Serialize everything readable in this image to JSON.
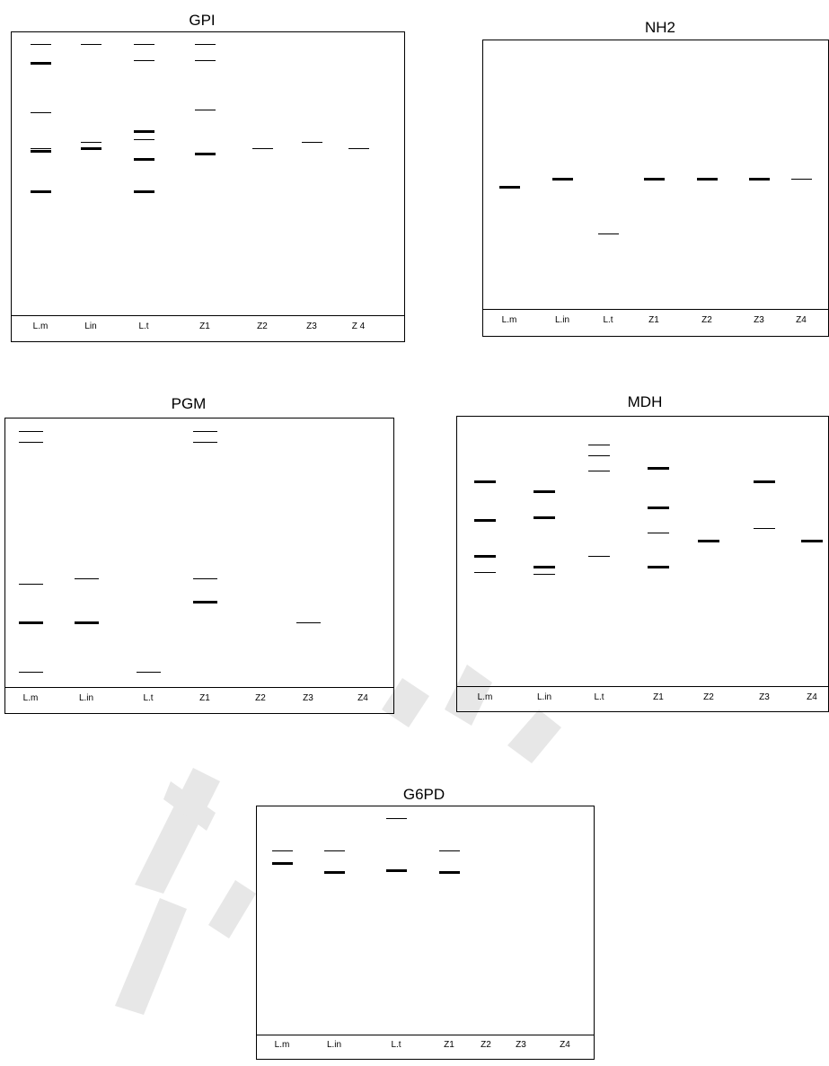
{
  "gels": [
    {
      "id": "gpi",
      "title": "GPI",
      "lanes": [
        "L.m",
        "Lin",
        "L.t",
        "Z1",
        "Z2",
        "Z3",
        "Z 4"
      ],
      "bands": [
        {
          "lane": 0,
          "weight": "thin",
          "level": 0.03
        },
        {
          "lane": 0,
          "weight": "bold",
          "level": 0.1
        },
        {
          "lane": 0,
          "weight": "thin",
          "level": 0.28
        },
        {
          "lane": 0,
          "weight": "thin",
          "level": 0.41
        },
        {
          "lane": 0,
          "weight": "bold",
          "level": 0.42
        },
        {
          "lane": 0,
          "weight": "bold",
          "level": 0.57
        },
        {
          "lane": 1,
          "weight": "thin",
          "level": 0.03
        },
        {
          "lane": 1,
          "weight": "thin",
          "level": 0.39
        },
        {
          "lane": 1,
          "weight": "bold",
          "level": 0.41
        },
        {
          "lane": 2,
          "weight": "thin",
          "level": 0.03
        },
        {
          "lane": 2,
          "weight": "thin",
          "level": 0.09
        },
        {
          "lane": 2,
          "weight": "bold",
          "level": 0.35
        },
        {
          "lane": 2,
          "weight": "thin",
          "level": 0.38
        },
        {
          "lane": 2,
          "weight": "bold",
          "level": 0.45
        },
        {
          "lane": 2,
          "weight": "bold",
          "level": 0.57
        },
        {
          "lane": 3,
          "weight": "thin",
          "level": 0.03
        },
        {
          "lane": 3,
          "weight": "thin",
          "level": 0.09
        },
        {
          "lane": 3,
          "weight": "thin",
          "level": 0.27
        },
        {
          "lane": 3,
          "weight": "bold",
          "level": 0.43
        },
        {
          "lane": 4,
          "weight": "thin",
          "level": 0.41
        },
        {
          "lane": 5,
          "weight": "thin",
          "level": 0.39
        },
        {
          "lane": 6,
          "weight": "thin",
          "level": 0.41
        }
      ]
    },
    {
      "id": "nh2",
      "title": "NH2",
      "lanes": [
        "L.m",
        "L.in",
        "L.t",
        "Z1",
        "Z2",
        "Z3",
        "Z4"
      ],
      "bands": [
        {
          "lane": 0,
          "weight": "bold",
          "level": 0.55
        },
        {
          "lane": 1,
          "weight": "bold",
          "level": 0.52
        },
        {
          "lane": 2,
          "weight": "thin",
          "level": 0.73
        },
        {
          "lane": 3,
          "weight": "bold",
          "level": 0.52
        },
        {
          "lane": 4,
          "weight": "bold",
          "level": 0.52
        },
        {
          "lane": 5,
          "weight": "bold",
          "level": 0.52
        },
        {
          "lane": 6,
          "weight": "thin",
          "level": 0.52
        }
      ]
    },
    {
      "id": "pgm",
      "title": "PGM",
      "lanes": [
        "L.m",
        "L.in",
        "L.t",
        "Z1",
        "Z2",
        "Z3",
        "Z4"
      ],
      "bands": [
        {
          "lane": 0,
          "weight": "thin",
          "level": 0.03
        },
        {
          "lane": 0,
          "weight": "thin",
          "level": 0.07
        },
        {
          "lane": 0,
          "weight": "thin",
          "level": 0.62
        },
        {
          "lane": 0,
          "weight": "bold",
          "level": 0.77
        },
        {
          "lane": 0,
          "weight": "thin",
          "level": 0.96
        },
        {
          "lane": 1,
          "weight": "thin",
          "level": 0.6
        },
        {
          "lane": 1,
          "weight": "bold",
          "level": 0.77
        },
        {
          "lane": 2,
          "weight": "thin",
          "level": 0.96
        },
        {
          "lane": 3,
          "weight": "thin",
          "level": 0.03
        },
        {
          "lane": 3,
          "weight": "thin",
          "level": 0.07
        },
        {
          "lane": 3,
          "weight": "thin",
          "level": 0.6
        },
        {
          "lane": 3,
          "weight": "bold",
          "level": 0.69
        },
        {
          "lane": 5,
          "weight": "thin",
          "level": 0.77
        }
      ]
    },
    {
      "id": "mdh",
      "title": "MDH",
      "lanes": [
        "L.m",
        "L.in",
        "L.t",
        "Z1",
        "Z2",
        "Z3",
        "Z4"
      ],
      "bands": [
        {
          "lane": 0,
          "weight": "bold",
          "level": 0.23
        },
        {
          "lane": 0,
          "weight": "bold",
          "level": 0.38
        },
        {
          "lane": 0,
          "weight": "bold",
          "level": 0.52
        },
        {
          "lane": 0,
          "weight": "thin",
          "level": 0.58
        },
        {
          "lane": 1,
          "weight": "bold",
          "level": 0.27
        },
        {
          "lane": 1,
          "weight": "bold",
          "level": 0.37
        },
        {
          "lane": 1,
          "weight": "bold",
          "level": 0.56
        },
        {
          "lane": 1,
          "weight": "thin",
          "level": 0.59
        },
        {
          "lane": 2,
          "weight": "thin",
          "level": 0.09
        },
        {
          "lane": 2,
          "weight": "thin",
          "level": 0.13
        },
        {
          "lane": 2,
          "weight": "thin",
          "level": 0.19
        },
        {
          "lane": 2,
          "weight": "thin",
          "level": 0.52
        },
        {
          "lane": 3,
          "weight": "bold",
          "level": 0.18
        },
        {
          "lane": 3,
          "weight": "bold",
          "level": 0.33
        },
        {
          "lane": 3,
          "weight": "thin",
          "level": 0.43
        },
        {
          "lane": 3,
          "weight": "bold",
          "level": 0.56
        },
        {
          "lane": 4,
          "weight": "bold",
          "level": 0.46
        },
        {
          "lane": 5,
          "weight": "bold",
          "level": 0.23
        },
        {
          "lane": 5,
          "weight": "thin",
          "level": 0.41
        },
        {
          "lane": 6,
          "weight": "bold",
          "level": 0.46
        }
      ]
    },
    {
      "id": "g6pd",
      "title": "G6PD",
      "lanes": [
        "L.m",
        "L.in",
        "L.t",
        "Z1",
        "Z2",
        "Z3",
        "Z4"
      ],
      "bands": [
        {
          "lane": 0,
          "weight": "thin",
          "level": 0.18
        },
        {
          "lane": 0,
          "weight": "bold",
          "level": 0.24
        },
        {
          "lane": 1,
          "weight": "thin",
          "level": 0.18
        },
        {
          "lane": 1,
          "weight": "bold",
          "level": 0.28
        },
        {
          "lane": 2,
          "weight": "thin",
          "level": 0.03
        },
        {
          "lane": 2,
          "weight": "bold",
          "level": 0.27
        },
        {
          "lane": 3,
          "weight": "thin",
          "level": 0.18
        },
        {
          "lane": 3,
          "weight": "bold",
          "level": 0.28
        }
      ]
    }
  ],
  "watermark": {
    "color": "#d0d0d0"
  }
}
